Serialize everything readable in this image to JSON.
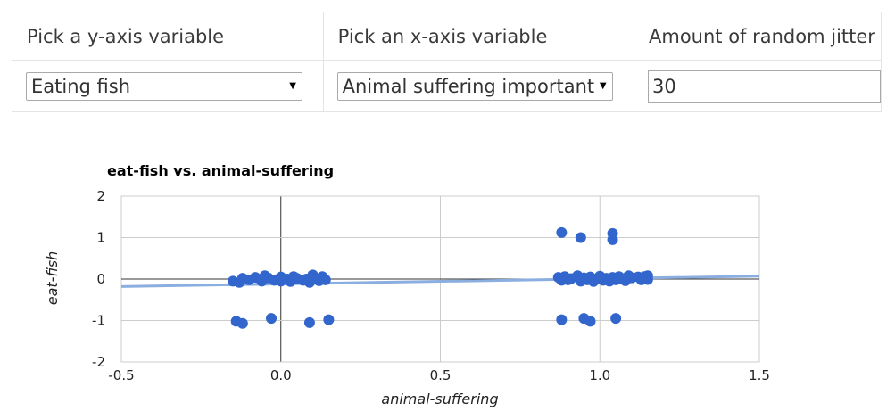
{
  "controls": {
    "y_label": "Pick a y-axis variable",
    "x_label": "Pick an x-axis variable",
    "jitter_label": "Amount of random jitter",
    "y_selected": "Eating fish",
    "x_selected": "Animal suffering important",
    "jitter_value": "30",
    "arrow_glyph": "▼"
  },
  "chart_data": {
    "type": "scatter",
    "title": "eat-fish vs. animal-suffering",
    "xlabel": "animal-suffering",
    "ylabel": "eat-fish",
    "xlim": [
      -0.5,
      1.5
    ],
    "ylim": [
      -2,
      2
    ],
    "xticks": [
      "-0.5",
      "0.0",
      "0.5",
      "1.0",
      "1.5"
    ],
    "yticks": [
      "-2",
      "-1",
      "0",
      "1",
      "2"
    ],
    "grid": true,
    "point_color": "#3366cc",
    "trendline_color": "#8aaee0",
    "trendline": [
      [
        -0.5,
        -0.18
      ],
      [
        1.5,
        0.07
      ]
    ],
    "points": [
      [
        -0.15,
        -0.05
      ],
      [
        -0.13,
        -0.08
      ],
      [
        -0.12,
        0.02
      ],
      [
        -0.1,
        -0.02
      ],
      [
        -0.08,
        0.04
      ],
      [
        -0.06,
        -0.05
      ],
      [
        -0.05,
        0.08
      ],
      [
        -0.04,
        0.03
      ],
      [
        -0.02,
        -0.03
      ],
      [
        0.0,
        0.05
      ],
      [
        0.0,
        -0.05
      ],
      [
        0.02,
        0.0
      ],
      [
        0.03,
        -0.06
      ],
      [
        0.04,
        0.06
      ],
      [
        0.05,
        0.02
      ],
      [
        0.07,
        -0.03
      ],
      [
        0.08,
        0.0
      ],
      [
        0.09,
        -0.08
      ],
      [
        0.1,
        0.1
      ],
      [
        0.11,
        0.02
      ],
      [
        0.12,
        -0.04
      ],
      [
        0.13,
        0.06
      ],
      [
        0.14,
        -0.02
      ],
      [
        -0.14,
        -1.02
      ],
      [
        -0.12,
        -1.07
      ],
      [
        -0.03,
        -0.95
      ],
      [
        0.09,
        -1.05
      ],
      [
        0.15,
        -0.98
      ],
      [
        0.87,
        0.04
      ],
      [
        0.88,
        -0.03
      ],
      [
        0.89,
        0.06
      ],
      [
        0.9,
        -0.02
      ],
      [
        0.91,
        0.01
      ],
      [
        0.93,
        0.08
      ],
      [
        0.94,
        -0.05
      ],
      [
        0.95,
        0.03
      ],
      [
        0.96,
        -0.02
      ],
      [
        0.97,
        0.05
      ],
      [
        0.98,
        -0.06
      ],
      [
        0.99,
        0.0
      ],
      [
        1.0,
        0.07
      ],
      [
        1.01,
        -0.03
      ],
      [
        1.02,
        0.02
      ],
      [
        1.03,
        -0.05
      ],
      [
        1.04,
        0.04
      ],
      [
        1.05,
        -0.02
      ],
      [
        1.06,
        0.06
      ],
      [
        1.07,
        0.01
      ],
      [
        1.08,
        -0.04
      ],
      [
        1.09,
        0.08
      ],
      [
        1.1,
        0.03
      ],
      [
        1.12,
        0.05
      ],
      [
        1.13,
        -0.02
      ],
      [
        1.14,
        0.06
      ],
      [
        1.15,
        0.08
      ],
      [
        1.15,
        -0.01
      ],
      [
        0.88,
        1.12
      ],
      [
        0.94,
        1.0
      ],
      [
        1.04,
        1.1
      ],
      [
        1.04,
        0.95
      ],
      [
        0.88,
        -0.98
      ],
      [
        0.95,
        -0.95
      ],
      [
        0.97,
        -1.02
      ],
      [
        1.05,
        -0.95
      ]
    ]
  }
}
